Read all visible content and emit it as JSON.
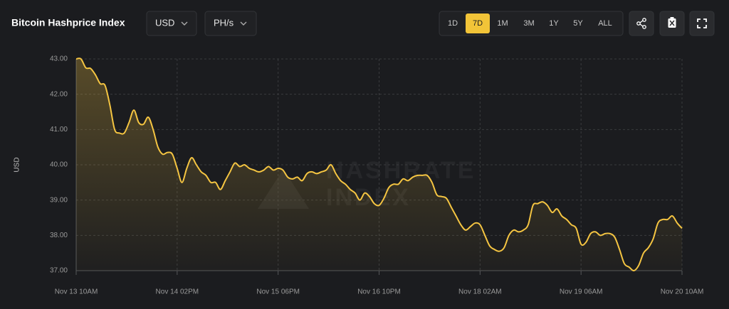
{
  "header": {
    "title": "Bitcoin Hashprice Index",
    "currency": "USD",
    "unit": "PH/s",
    "ranges": [
      "1D",
      "7D",
      "1M",
      "3M",
      "1Y",
      "5Y",
      "ALL"
    ],
    "active_range": "7D"
  },
  "chart_data": {
    "type": "area",
    "ylabel": "USD",
    "color": "#f5c542",
    "grid": true,
    "watermark": [
      "HASHRATE",
      "INDEX"
    ],
    "xticks": [
      "Nov 13 10AM",
      "Nov 14 02PM",
      "Nov 15 06PM",
      "Nov 16 10PM",
      "Nov 18 02AM",
      "Nov 19 06AM",
      "Nov 20 10AM"
    ],
    "ylim": [
      37,
      43
    ],
    "yticks": [
      {
        "value": 37,
        "label": "37.00"
      },
      {
        "value": 38,
        "label": "38.00"
      },
      {
        "value": 39,
        "label": "39.00"
      },
      {
        "value": 40,
        "label": "40.00"
      },
      {
        "value": 41,
        "label": "41.00"
      },
      {
        "value": 42,
        "label": "42.00"
      },
      {
        "value": 43,
        "label": "43.00"
      }
    ],
    "values": [
      43.0,
      43.0,
      42.75,
      42.73,
      42.55,
      42.3,
      42.25,
      41.7,
      41.0,
      40.9,
      40.9,
      41.2,
      41.55,
      41.2,
      41.15,
      41.35,
      41.0,
      40.5,
      40.3,
      40.35,
      40.3,
      39.9,
      39.5,
      39.9,
      40.2,
      40.0,
      39.8,
      39.7,
      39.5,
      39.5,
      39.3,
      39.55,
      39.8,
      40.05,
      39.95,
      40.0,
      39.9,
      39.85,
      39.8,
      39.85,
      39.95,
      39.85,
      39.9,
      39.85,
      39.65,
      39.6,
      39.65,
      39.55,
      39.75,
      39.8,
      39.75,
      39.8,
      39.85,
      40.0,
      39.75,
      39.55,
      39.45,
      39.3,
      39.2,
      39.0,
      39.2,
      39.1,
      38.9,
      38.85,
      39.05,
      39.35,
      39.45,
      39.45,
      39.6,
      39.55,
      39.65,
      39.7,
      39.7,
      39.7,
      39.5,
      39.15,
      39.1,
      39.05,
      38.8,
      38.55,
      38.3,
      38.15,
      38.25,
      38.35,
      38.3,
      38.0,
      37.7,
      37.6,
      37.55,
      37.65,
      38.0,
      38.15,
      38.1,
      38.15,
      38.3,
      38.85,
      38.9,
      38.95,
      38.85,
      38.65,
      38.75,
      38.55,
      38.45,
      38.3,
      38.2,
      37.75,
      37.8,
      38.05,
      38.1,
      38.0,
      38.05,
      38.05,
      37.95,
      37.6,
      37.2,
      37.1,
      37.0,
      37.15,
      37.5,
      37.65,
      37.9,
      38.35,
      38.45,
      38.45,
      38.55,
      38.35,
      38.2
    ]
  }
}
